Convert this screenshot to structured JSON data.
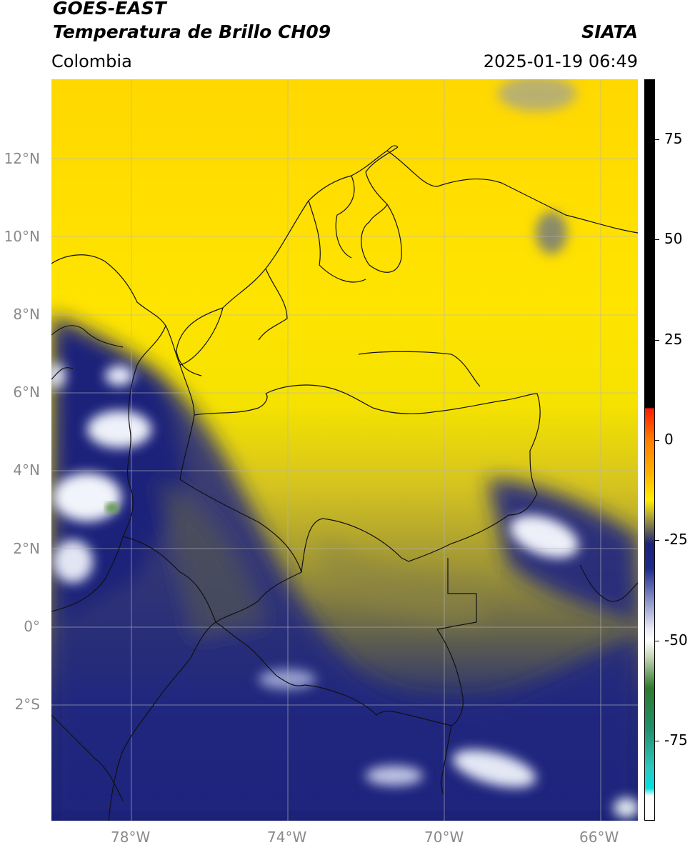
{
  "header": {
    "satellite": "GOES-EAST",
    "product": "Temperatura de Brillo CH09",
    "agency": "SIATA",
    "region": "Colombia",
    "datetime": "2025-01-19 06:49"
  },
  "map": {
    "lat_ticks": [
      {
        "value": 12,
        "label": "12°N"
      },
      {
        "value": 10,
        "label": "10°N"
      },
      {
        "value": 8,
        "label": "8°N"
      },
      {
        "value": 6,
        "label": "6°N"
      },
      {
        "value": 4,
        "label": "4°N"
      },
      {
        "value": 2,
        "label": "2°N"
      },
      {
        "value": 0,
        "label": "0°"
      },
      {
        "value": -2,
        "label": "2°S"
      }
    ],
    "lon_ticks": [
      {
        "value": -78,
        "label": "78°W"
      },
      {
        "value": -74,
        "label": "74°W"
      },
      {
        "value": -70,
        "label": "70°W"
      },
      {
        "value": -66,
        "label": "66°W"
      }
    ],
    "colors": {
      "warm": "#ffe300",
      "warmest": "#ffd400",
      "olive": "#b5a92d",
      "grey_olive": "#6a6a48",
      "cold_navy": "#1a237a",
      "deep_navy": "#141e6e",
      "cloud_white": "#e8ecf6",
      "border": "#111111",
      "grid": "#b4b4b4"
    }
  },
  "colorbar": {
    "ticks": [
      {
        "value": 75,
        "label": "75"
      },
      {
        "value": 50,
        "label": "50"
      },
      {
        "value": 25,
        "label": "25"
      },
      {
        "value": 0,
        "label": "0"
      },
      {
        "value": -25,
        "label": "-25"
      },
      {
        "value": -50,
        "label": "-50"
      },
      {
        "value": -75,
        "label": "-75"
      }
    ],
    "range": [
      -95,
      90
    ],
    "stops": [
      {
        "value": 90,
        "color": "#000000"
      },
      {
        "value": 8,
        "color": "#000000"
      },
      {
        "value": 7.9,
        "color": "#ff1a00"
      },
      {
        "value": 0,
        "color": "#ff7d00"
      },
      {
        "value": -8,
        "color": "#ffb000"
      },
      {
        "value": -15,
        "color": "#ffee00"
      },
      {
        "value": -18,
        "color": "#c7b82a"
      },
      {
        "value": -22,
        "color": "#6e6e52"
      },
      {
        "value": -26,
        "color": "#1a237a"
      },
      {
        "value": -32,
        "color": "#1c2a8c"
      },
      {
        "value": -40,
        "color": "#8890c8"
      },
      {
        "value": -47,
        "color": "#e6e8f4"
      },
      {
        "value": -50,
        "color": "#ffffff"
      },
      {
        "value": -54,
        "color": "#c9d7b9"
      },
      {
        "value": -62,
        "color": "#2e7a2c"
      },
      {
        "value": -72,
        "color": "#1f8f6a"
      },
      {
        "value": -82,
        "color": "#2ec7c0"
      },
      {
        "value": -87,
        "color": "#00e0e0"
      },
      {
        "value": -89,
        "color": "#ffffff"
      },
      {
        "value": -95,
        "color": "#ffffff"
      }
    ]
  }
}
